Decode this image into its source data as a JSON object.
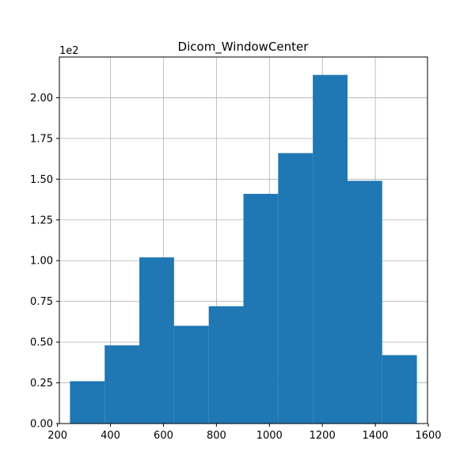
{
  "chart_data": {
    "type": "bar",
    "title": "Dicom_WindowCenter",
    "xlabel": "",
    "ylabel": "",
    "y_offset_label": "1e2",
    "bar_color": "#1f77b4",
    "grid": true,
    "xlim": [
      207,
      1597
    ],
    "ylim": [
      0,
      2.25
    ],
    "x_ticks": [
      200,
      400,
      600,
      800,
      1000,
      1200,
      1400,
      1600
    ],
    "x_tick_labels": [
      "200",
      "400",
      "600",
      "800",
      "1000",
      "1200",
      "1400",
      "1600"
    ],
    "y_ticks": [
      0,
      0.25,
      0.5,
      0.75,
      1.0,
      1.25,
      1.5,
      1.75,
      2.0
    ],
    "y_tick_labels": [
      "0.00",
      "0.25",
      "0.50",
      "0.75",
      "1.00",
      "1.25",
      "1.50",
      "1.75",
      "2.00"
    ],
    "bin_edges": [
      247,
      378,
      509,
      640,
      771,
      902,
      1033,
      1164,
      1295,
      1426,
      1557
    ],
    "values": [
      0.26,
      0.48,
      1.02,
      0.6,
      0.72,
      1.41,
      1.66,
      2.14,
      1.49,
      0.42
    ]
  }
}
